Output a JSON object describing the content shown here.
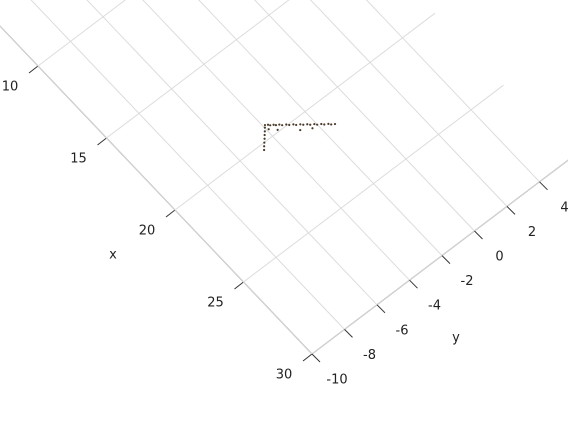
{
  "chart_data": {
    "type": "scatter",
    "xlabel": "x",
    "ylabel": "y",
    "color": "#4a3a2a",
    "x": [
      19.32,
      19.4,
      19.49,
      19.57,
      19.66,
      19.74,
      19.85,
      19.95,
      20.06,
      20.16,
      20.27,
      20.37,
      20.48,
      20.58,
      20.69,
      20.79,
      20.9,
      21.0,
      21.11,
      21.21,
      21.32,
      21.42,
      19.42,
      19.57,
      19.71,
      19.86,
      20.01,
      20.15,
      20.3,
      20.6,
      20.9,
      19.6,
      19.9
    ],
    "values": [
      -3.89,
      -3.77,
      -3.71,
      -3.57,
      -3.5,
      -3.36,
      -3.28,
      -3.11,
      -3.02,
      -2.85,
      -2.77,
      -2.6,
      -2.51,
      -2.35,
      -2.26,
      -2.09,
      -2.01,
      -1.84,
      -1.75,
      -1.58,
      -1.5,
      -1.35,
      -3.98,
      -4.11,
      -4.24,
      -4.37,
      -4.51,
      -4.64,
      -4.77,
      -2.8,
      -2.3,
      -3.9,
      -3.6
    ],
    "xlim": [
      5,
      30
    ],
    "ylim": [
      -10,
      6
    ],
    "xticks": [
      10,
      15,
      20,
      25,
      30
    ],
    "yticks": [
      -10,
      -8,
      -6,
      -4,
      -2,
      0,
      2,
      4
    ],
    "grid": true
  }
}
